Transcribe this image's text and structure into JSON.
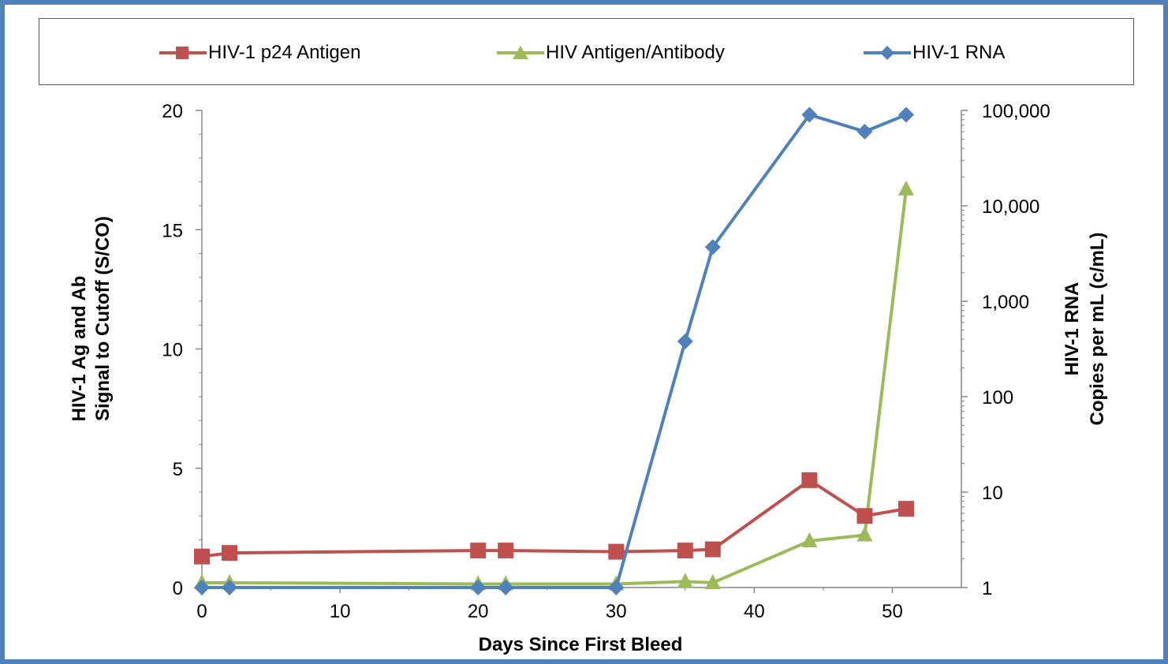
{
  "chart_data": {
    "type": "line",
    "xlabel": "Days Since First Bleed",
    "ylabel_left": [
      "HIV-1 Ag and Ab",
      "Signal to Cutoff (S/CO)"
    ],
    "ylabel_right": [
      "HIV-1 RNA",
      "Copies per mL (c/mL)"
    ],
    "xlim": [
      0,
      55
    ],
    "x_ticks": [
      "0",
      "10",
      "20",
      "30",
      "40",
      "50"
    ],
    "ylim_left": [
      0,
      20
    ],
    "y_left_ticks": [
      "0",
      "5",
      "10",
      "15",
      "20"
    ],
    "ylim_right": [
      1,
      100000
    ],
    "y_right_scale": "log",
    "y_right_ticks": [
      "1",
      "10",
      "100",
      "1,000",
      "10,000",
      "100,000"
    ],
    "grid": false,
    "legend": "top",
    "series": [
      {
        "name": "HIV-1 p24 Antigen",
        "axis": "left",
        "color": "#c0504d",
        "marker": "square",
        "x": [
          0,
          2,
          20,
          22,
          30,
          35,
          37,
          44,
          48,
          51
        ],
        "y": [
          1.3,
          1.45,
          1.55,
          1.55,
          1.5,
          1.55,
          1.6,
          4.5,
          3.0,
          3.3
        ]
      },
      {
        "name": "HIV Antigen/Antibody",
        "axis": "left",
        "color": "#9bbb59",
        "marker": "triangle",
        "x": [
          0,
          2,
          20,
          22,
          30,
          35,
          37,
          44,
          48,
          51
        ],
        "y": [
          0.2,
          0.2,
          0.15,
          0.15,
          0.15,
          0.25,
          0.2,
          1.95,
          2.2,
          16.7
        ]
      },
      {
        "name": "HIV-1 RNA",
        "axis": "right",
        "color": "#4f81bd",
        "marker": "diamond",
        "x": [
          0,
          2,
          20,
          22,
          30,
          35,
          37,
          44,
          48,
          51
        ],
        "y": [
          1,
          1,
          1,
          1,
          1,
          380,
          3700,
          90000,
          60000,
          90000
        ]
      }
    ]
  }
}
